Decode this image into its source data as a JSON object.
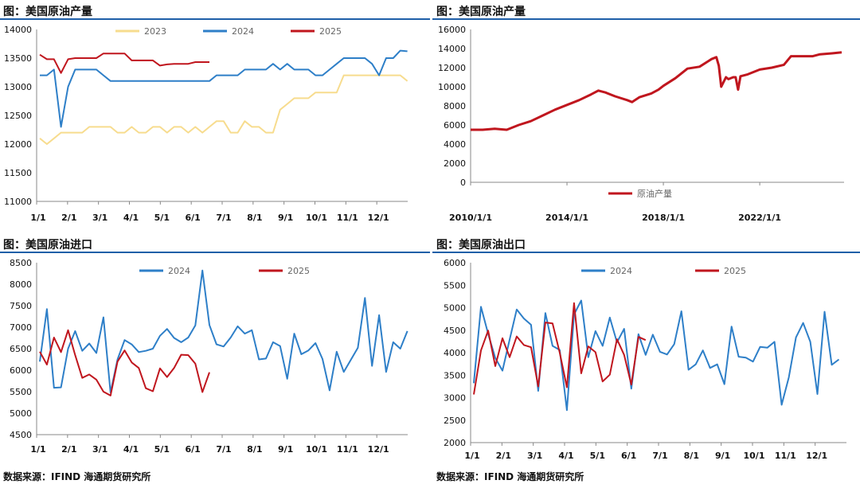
{
  "panels": {
    "p1": {
      "title": "图：美国原油产量"
    },
    "p2": {
      "title": "图：美国原油产量"
    },
    "p3": {
      "title": "图：美国原油进口"
    },
    "p4": {
      "title": "图：美国原油出口"
    }
  },
  "source_left": "数据来源：IFIND   海通期货研究所",
  "source_right": "数据来源：IFIND   海通期货研究所",
  "colors": {
    "y2023": "#f7dc8e",
    "y2024": "#2e7fc8",
    "y2025": "#c0161e",
    "divider": "#1f5fa8"
  },
  "chart_data": [
    {
      "id": "p1",
      "type": "line",
      "title": "图：美国原油产量",
      "x_ticks": [
        "1/1",
        "2/1",
        "3/1",
        "4/1",
        "5/1",
        "6/1",
        "7/1",
        "8/1",
        "9/1",
        "10/1",
        "11/1",
        "12/1"
      ],
      "ylim": [
        11000,
        14000
      ],
      "y_ticks": [
        11000,
        11500,
        12000,
        12500,
        13000,
        13500,
        14000
      ],
      "legend_position": "top",
      "series": [
        {
          "name": "2023",
          "color": "#f7dc8e",
          "values": [
            12100,
            12000,
            12100,
            12200,
            12200,
            12200,
            12200,
            12300,
            12300,
            12300,
            12300,
            12200,
            12200,
            12300,
            12200,
            12200,
            12300,
            12300,
            12200,
            12300,
            12300,
            12200,
            12300,
            12200,
            12300,
            12400,
            12400,
            12200,
            12200,
            12400,
            12300,
            12300,
            12200,
            12200,
            12600,
            12700,
            12800,
            12800,
            12800,
            12900,
            12900,
            12900,
            12900,
            13200,
            13200,
            13200,
            13200,
            13200,
            13200,
            13200,
            13200,
            13200,
            13100
          ]
        },
        {
          "name": "2024",
          "color": "#2e7fc8",
          "values": [
            13200,
            13200,
            13300,
            12300,
            13000,
            13300,
            13300,
            13300,
            13300,
            13200,
            13100,
            13100,
            13100,
            13100,
            13100,
            13100,
            13100,
            13100,
            13100,
            13100,
            13100,
            13100,
            13100,
            13100,
            13100,
            13200,
            13200,
            13200,
            13200,
            13300,
            13300,
            13300,
            13300,
            13400,
            13300,
            13400,
            13300,
            13300,
            13300,
            13200,
            13200,
            13300,
            13400,
            13500,
            13500,
            13500,
            13500,
            13400,
            13200,
            13500,
            13500,
            13630,
            13620
          ]
        },
        {
          "name": "2025",
          "color": "#c0161e",
          "values": [
            13560,
            13480,
            13480,
            13240,
            13480,
            13500,
            13500,
            13500,
            13500,
            13580,
            13580,
            13580,
            13580,
            13460,
            13460,
            13460,
            13460,
            13370,
            13390,
            13400,
            13400,
            13400,
            13430,
            13430,
            13430
          ]
        }
      ]
    },
    {
      "id": "p2",
      "type": "line",
      "title": "图：美国原油产量",
      "x_ticks": [
        "2010/1/1",
        "2014/1/1",
        "2018/1/1",
        "2022/1/1"
      ],
      "x_range": [
        2010.0,
        2025.5
      ],
      "ylim": [
        0,
        16000
      ],
      "y_ticks": [
        0,
        2000,
        4000,
        6000,
        8000,
        10000,
        12000,
        14000,
        16000
      ],
      "legend_position": "bottom",
      "series": [
        {
          "name": "原油产量",
          "color": "#c0161e",
          "x": [
            2010.0,
            2010.5,
            2011.0,
            2011.5,
            2012.0,
            2012.5,
            2013.0,
            2013.5,
            2014.0,
            2014.5,
            2015.0,
            2015.3,
            2015.6,
            2016.0,
            2016.5,
            2016.7,
            2017.0,
            2017.5,
            2017.8,
            2018.0,
            2018.5,
            2019.0,
            2019.5,
            2020.0,
            2020.2,
            2020.3,
            2020.4,
            2020.6,
            2020.7,
            2020.9,
            2021.0,
            2021.1,
            2021.2,
            2021.5,
            2022.0,
            2022.5,
            2023.0,
            2023.3,
            2023.6,
            2024.0,
            2024.2,
            2024.5,
            2025.0,
            2025.4
          ],
          "values": [
            5500,
            5500,
            5600,
            5500,
            6000,
            6400,
            7000,
            7600,
            8100,
            8600,
            9200,
            9600,
            9400,
            9000,
            8600,
            8400,
            8900,
            9300,
            9700,
            10100,
            10900,
            11900,
            12100,
            12900,
            13100,
            12200,
            10000,
            11000,
            10800,
            11000,
            11000,
            9700,
            11100,
            11300,
            11800,
            12000,
            12300,
            13200,
            13200,
            13200,
            13200,
            13400,
            13500,
            13600
          ]
        }
      ]
    },
    {
      "id": "p3",
      "type": "line",
      "title": "图：美国原油进口",
      "x_ticks": [
        "1/1",
        "2/1",
        "3/1",
        "4/1",
        "5/1",
        "6/1",
        "7/1",
        "8/1",
        "9/1",
        "10/1",
        "11/1",
        "12/1"
      ],
      "ylim": [
        4500,
        8500
      ],
      "y_ticks": [
        4500,
        5000,
        5500,
        6000,
        6500,
        7000,
        7500,
        8000,
        8500
      ],
      "legend_position": "top",
      "series": [
        {
          "name": "2024",
          "color": "#2e7fc8",
          "values": [
            6200,
            7420,
            5590,
            5600,
            6500,
            6910,
            6450,
            6620,
            6400,
            7230,
            5480,
            6250,
            6700,
            6600,
            6420,
            6450,
            6500,
            6800,
            6960,
            6750,
            6650,
            6760,
            7040,
            8320,
            7050,
            6600,
            6550,
            6760,
            7020,
            6850,
            6930,
            6250,
            6270,
            6650,
            6560,
            5800,
            6850,
            6370,
            6460,
            6630,
            6260,
            5530,
            6430,
            5960,
            6240,
            6520,
            7680,
            6100,
            7280,
            5960,
            6650,
            6500,
            6910
          ]
        },
        {
          "name": "2025",
          "color": "#c0161e",
          "values": [
            6430,
            6130,
            6760,
            6420,
            6930,
            6350,
            5820,
            5900,
            5780,
            5500,
            5410,
            6200,
            6460,
            6180,
            6050,
            5580,
            5510,
            6040,
            5840,
            6050,
            6360,
            6350,
            6150,
            5490,
            5950
          ]
        }
      ]
    },
    {
      "id": "p4",
      "type": "line",
      "title": "图：美国原油出口",
      "x_ticks": [
        "1/1",
        "2/1",
        "3/1",
        "4/1",
        "5/1",
        "6/1",
        "7/1",
        "8/1",
        "9/1",
        "10/1",
        "11/1",
        "12/1"
      ],
      "ylim": [
        2000,
        6000
      ],
      "y_ticks": [
        2000,
        2500,
        3000,
        3500,
        4000,
        4500,
        5000,
        5500,
        6000
      ],
      "legend_position": "top",
      "series": [
        {
          "name": "2024",
          "color": "#2e7fc8",
          "values": [
            3320,
            5020,
            4420,
            3880,
            3600,
            4290,
            4960,
            4760,
            4620,
            3150,
            4880,
            4150,
            4060,
            2720,
            4850,
            5160,
            3900,
            4480,
            4150,
            4780,
            4230,
            4530,
            3200,
            4410,
            3950,
            4400,
            4020,
            3960,
            4190,
            4920,
            3620,
            3740,
            4050,
            3660,
            3740,
            3300,
            4580,
            3910,
            3890,
            3800,
            4130,
            4110,
            4240,
            2840,
            3450,
            4340,
            4660,
            4240,
            3080,
            4910,
            3730,
            3850
          ]
        },
        {
          "name": "2025",
          "color": "#c0161e",
          "values": [
            3070,
            4050,
            4490,
            3700,
            4320,
            3900,
            4360,
            4170,
            4120,
            3250,
            4670,
            4650,
            4000,
            3230,
            5100,
            3540,
            4140,
            4010,
            3360,
            3510,
            4300,
            3950,
            3290,
            4350,
            4280
          ]
        }
      ]
    }
  ]
}
